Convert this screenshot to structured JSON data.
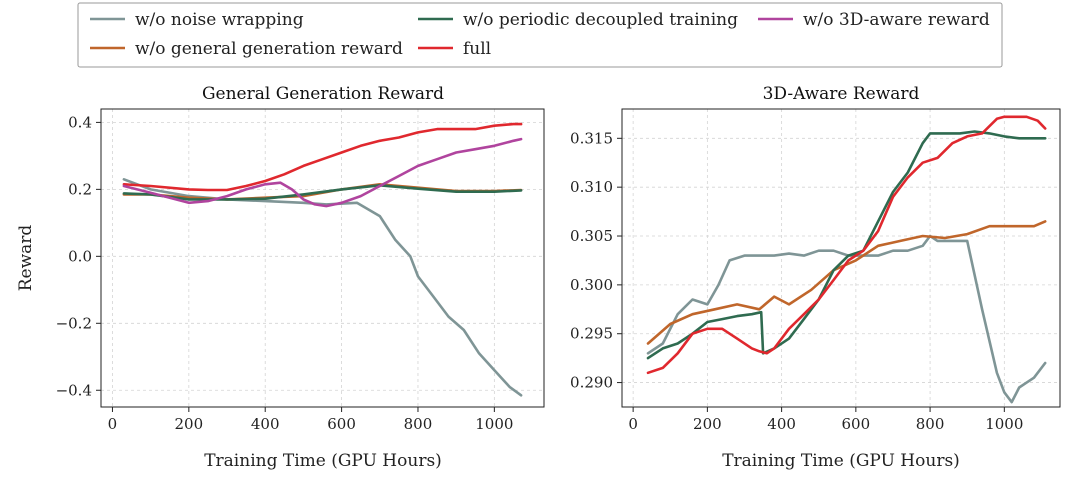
{
  "legend": [
    {
      "name": "w/o noise wrapping",
      "color": "#7f9596"
    },
    {
      "name": "w/o general generation reward",
      "color": "#c0662b"
    },
    {
      "name": "w/o periodic decoupled training",
      "color": "#2f6b50"
    },
    {
      "name": "full",
      "color": "#e0282e"
    },
    {
      "name": "w/o 3D-aware reward",
      "color": "#b0449e"
    }
  ],
  "chart_data": [
    {
      "type": "line",
      "title": "General Generation Reward",
      "xlabel": "Training Time (GPU Hours)",
      "ylabel": "Reward",
      "xlim": [
        -30,
        1130
      ],
      "ylim": [
        -0.45,
        0.44
      ],
      "xticks": [
        0,
        200,
        400,
        600,
        800,
        1000
      ],
      "yticks": [
        0.4,
        0.2,
        0.0,
        -0.2,
        -0.4
      ],
      "ytick_labels": [
        "0.4",
        "0.2",
        "0.0",
        "−0.2",
        "−0.4"
      ],
      "grid": true,
      "series": [
        {
          "name": "w/o noise wrapping",
          "color": "#7f9596",
          "x": [
            30,
            100,
            200,
            300,
            400,
            500,
            560,
            640,
            700,
            740,
            780,
            800,
            840,
            880,
            920,
            960,
            1000,
            1040,
            1070
          ],
          "y": [
            0.23,
            0.2,
            0.18,
            0.17,
            0.165,
            0.16,
            0.155,
            0.16,
            0.12,
            0.05,
            0.0,
            -0.06,
            -0.12,
            -0.18,
            -0.22,
            -0.29,
            -0.34,
            -0.39,
            -0.415
          ]
        },
        {
          "name": "w/o general generation reward",
          "color": "#c0662b",
          "x": [
            30,
            100,
            200,
            300,
            400,
            500,
            600,
            700,
            800,
            900,
            1000,
            1070
          ],
          "y": [
            0.185,
            0.185,
            0.175,
            0.17,
            0.175,
            0.18,
            0.2,
            0.215,
            0.205,
            0.195,
            0.195,
            0.198
          ]
        },
        {
          "name": "w/o periodic decoupled training",
          "color": "#2f6b50",
          "x": [
            30,
            100,
            200,
            300,
            400,
            500,
            600,
            700,
            800,
            900,
            1000,
            1070
          ],
          "y": [
            0.188,
            0.185,
            0.17,
            0.17,
            0.172,
            0.185,
            0.2,
            0.212,
            0.202,
            0.193,
            0.193,
            0.197
          ]
        },
        {
          "name": "full",
          "color": "#e0282e",
          "x": [
            30,
            100,
            200,
            250,
            300,
            350,
            400,
            450,
            500,
            550,
            600,
            650,
            700,
            750,
            800,
            850,
            900,
            950,
            1000,
            1050,
            1070
          ],
          "y": [
            0.215,
            0.21,
            0.2,
            0.198,
            0.198,
            0.21,
            0.225,
            0.245,
            0.27,
            0.29,
            0.31,
            0.33,
            0.345,
            0.355,
            0.37,
            0.38,
            0.38,
            0.38,
            0.39,
            0.395,
            0.395
          ]
        },
        {
          "name": "w/o 3D-aware reward",
          "color": "#b0449e",
          "x": [
            30,
            100,
            150,
            200,
            250,
            300,
            350,
            400,
            440,
            470,
            500,
            530,
            560,
            600,
            650,
            700,
            750,
            800,
            850,
            900,
            950,
            1000,
            1050,
            1070
          ],
          "y": [
            0.21,
            0.19,
            0.175,
            0.16,
            0.165,
            0.18,
            0.2,
            0.215,
            0.22,
            0.2,
            0.17,
            0.155,
            0.15,
            0.16,
            0.18,
            0.21,
            0.24,
            0.27,
            0.29,
            0.31,
            0.32,
            0.33,
            0.345,
            0.35
          ]
        }
      ]
    },
    {
      "type": "line",
      "title": "3D-Aware Reward",
      "xlabel": "Training Time (GPU Hours)",
      "ylabel": "",
      "xlim": [
        -30,
        1150
      ],
      "ylim": [
        0.2875,
        0.318
      ],
      "xticks": [
        0,
        200,
        400,
        600,
        800,
        1000
      ],
      "yticks": [
        0.315,
        0.31,
        0.305,
        0.3,
        0.295,
        0.29
      ],
      "ytick_labels": [
        "0.315",
        "0.310",
        "0.305",
        "0.300",
        "0.295",
        "0.290"
      ],
      "grid": true,
      "series": [
        {
          "name": "w/o noise wrapping",
          "color": "#7f9596",
          "x": [
            40,
            80,
            120,
            160,
            200,
            230,
            260,
            300,
            340,
            380,
            420,
            460,
            500,
            540,
            580,
            620,
            660,
            700,
            740,
            780,
            800,
            820,
            860,
            900,
            940,
            980,
            1000,
            1020,
            1040,
            1060,
            1080,
            1110
          ],
          "y": [
            0.293,
            0.294,
            0.297,
            0.2985,
            0.298,
            0.3,
            0.3025,
            0.303,
            0.303,
            0.303,
            0.3032,
            0.303,
            0.3035,
            0.3035,
            0.303,
            0.303,
            0.303,
            0.3035,
            0.3035,
            0.304,
            0.305,
            0.3045,
            0.3045,
            0.3045,
            0.2975,
            0.291,
            0.289,
            0.288,
            0.2895,
            0.29,
            0.2905,
            0.292
          ]
        },
        {
          "name": "w/o general generation reward",
          "color": "#c0662b",
          "x": [
            40,
            100,
            160,
            220,
            280,
            340,
            380,
            420,
            480,
            540,
            600,
            660,
            720,
            780,
            840,
            900,
            960,
            1020,
            1080,
            1110
          ],
          "y": [
            0.294,
            0.296,
            0.297,
            0.2975,
            0.298,
            0.2975,
            0.2988,
            0.298,
            0.2995,
            0.3015,
            0.3025,
            0.304,
            0.3045,
            0.305,
            0.3048,
            0.3052,
            0.306,
            0.306,
            0.306,
            0.3065
          ]
        },
        {
          "name": "w/o periodic decoupled training",
          "color": "#2f6b50",
          "x": [
            40,
            80,
            120,
            160,
            200,
            240,
            280,
            320,
            345,
            350,
            380,
            420,
            460,
            500,
            540,
            580,
            620,
            660,
            700,
            740,
            780,
            800,
            840,
            880,
            920,
            960,
            1000,
            1040,
            1080,
            1110
          ],
          "y": [
            0.2925,
            0.2935,
            0.294,
            0.295,
            0.2962,
            0.2965,
            0.2968,
            0.297,
            0.2972,
            0.293,
            0.2935,
            0.2945,
            0.2965,
            0.2985,
            0.3015,
            0.303,
            0.3035,
            0.3065,
            0.3095,
            0.3115,
            0.3145,
            0.3155,
            0.3155,
            0.3155,
            0.3157,
            0.3155,
            0.3152,
            0.315,
            0.315,
            0.315
          ]
        },
        {
          "name": "full",
          "color": "#e0282e",
          "x": [
            40,
            80,
            120,
            160,
            200,
            240,
            280,
            320,
            340,
            360,
            380,
            420,
            460,
            500,
            540,
            580,
            620,
            660,
            700,
            740,
            780,
            820,
            860,
            900,
            940,
            980,
            1000,
            1030,
            1060,
            1090,
            1110
          ],
          "y": [
            0.291,
            0.2915,
            0.293,
            0.295,
            0.2955,
            0.2955,
            0.2945,
            0.2935,
            0.2932,
            0.293,
            0.2935,
            0.2955,
            0.297,
            0.2985,
            0.3005,
            0.3025,
            0.3035,
            0.3055,
            0.309,
            0.311,
            0.3125,
            0.313,
            0.3145,
            0.3152,
            0.3155,
            0.317,
            0.3172,
            0.3172,
            0.3172,
            0.3168,
            0.316
          ]
        }
      ]
    }
  ]
}
